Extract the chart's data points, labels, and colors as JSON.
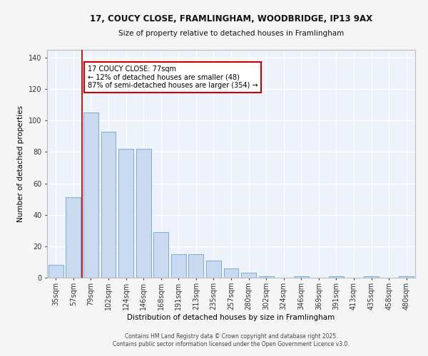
{
  "title": "17, COUCY CLOSE, FRAMLINGHAM, WOODBRIDGE, IP13 9AX",
  "subtitle": "Size of property relative to detached houses in Framlingham",
  "xlabel": "Distribution of detached houses by size in Framlingham",
  "ylabel": "Number of detached properties",
  "bar_values": [
    8,
    51,
    105,
    93,
    82,
    82,
    29,
    15,
    15,
    11,
    6,
    3,
    1,
    0,
    1,
    0,
    1,
    0,
    1,
    0,
    1
  ],
  "categories": [
    "35sqm",
    "57sqm",
    "79sqm",
    "102sqm",
    "124sqm",
    "146sqm",
    "168sqm",
    "191sqm",
    "213sqm",
    "235sqm",
    "257sqm",
    "280sqm",
    "302sqm",
    "324sqm",
    "346sqm",
    "369sqm",
    "391sqm",
    "413sqm",
    "435sqm",
    "458sqm",
    "480sqm"
  ],
  "bar_color": "#c9d9f0",
  "bar_edge_color": "#7aabdb",
  "property_line_color": "#cc0000",
  "annotation_title": "17 COUCY CLOSE: 77sqm",
  "annotation_line1": "← 12% of detached houses are smaller (48)",
  "annotation_line2": "87% of semi-detached houses are larger (354) →",
  "annotation_box_facecolor": "#ffffff",
  "annotation_box_edgecolor": "#cc0000",
  "ylim": [
    0,
    145
  ],
  "yticks": [
    0,
    20,
    40,
    60,
    80,
    100,
    120,
    140
  ],
  "bg_color": "#eef2fb",
  "grid_color": "#ffffff",
  "fig_facecolor": "#f5f5f5",
  "footer_line1": "Contains HM Land Registry data © Crown copyright and database right 2025.",
  "footer_line2": "Contains public sector information licensed under the Open Government Licence v3.0."
}
